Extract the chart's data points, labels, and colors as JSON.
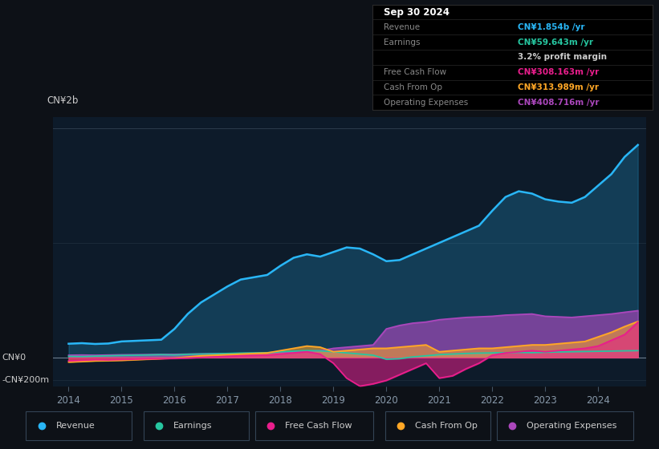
{
  "bg_color": "#0d1117",
  "chart_bg": "#0d1b2a",
  "ylim": [
    -250000000,
    2100000000
  ],
  "revenue_color": "#29b6f6",
  "earnings_color": "#26c6a0",
  "fcf_color": "#e91e8c",
  "cashfromop_color": "#ffa726",
  "opex_color": "#ab47bc",
  "legend_items": [
    {
      "label": "Revenue",
      "color": "#29b6f6"
    },
    {
      "label": "Earnings",
      "color": "#26c6a0"
    },
    {
      "label": "Free Cash Flow",
      "color": "#e91e8c"
    },
    {
      "label": "Cash From Op",
      "color": "#ffa726"
    },
    {
      "label": "Operating Expenses",
      "color": "#ab47bc"
    }
  ],
  "info_box": {
    "date": "Sep 30 2024",
    "revenue_label": "Revenue",
    "revenue": "CN¥1.854b",
    "revenue_color": "#29b6f6",
    "earnings_label": "Earnings",
    "earnings": "CN¥59.643m",
    "earnings_color": "#26c6a0",
    "profit_margin": "3.2%",
    "fcf_label": "Free Cash Flow",
    "fcf": "CN¥308.163m",
    "fcf_color": "#e91e8c",
    "cashfromop_label": "Cash From Op",
    "cashfromop": "CN¥313.989m",
    "cashfromop_color": "#ffa726",
    "opex_label": "Operating Expenses",
    "opex": "CN¥408.716m",
    "opex_color": "#ab47bc"
  },
  "ylabel_top": "CN¥2b",
  "ylabel_zero": "CN¥0",
  "ylabel_neg": "-CN¥200m",
  "x_years": [
    2014.0,
    2014.25,
    2014.5,
    2014.75,
    2015.0,
    2015.25,
    2015.5,
    2015.75,
    2016.0,
    2016.25,
    2016.5,
    2016.75,
    2017.0,
    2017.25,
    2017.5,
    2017.75,
    2018.0,
    2018.25,
    2018.5,
    2018.75,
    2019.0,
    2019.25,
    2019.5,
    2019.75,
    2020.0,
    2020.25,
    2020.5,
    2020.75,
    2021.0,
    2021.25,
    2021.5,
    2021.75,
    2022.0,
    2022.25,
    2022.5,
    2022.75,
    2023.0,
    2023.25,
    2023.5,
    2023.75,
    2024.0,
    2024.25,
    2024.5,
    2024.75
  ],
  "revenue": [
    120,
    125,
    118,
    122,
    140,
    145,
    150,
    155,
    250,
    380,
    480,
    550,
    620,
    680,
    700,
    720,
    800,
    870,
    900,
    880,
    920,
    960,
    950,
    900,
    840,
    850,
    900,
    950,
    1000,
    1050,
    1100,
    1150,
    1280,
    1400,
    1450,
    1430,
    1380,
    1360,
    1350,
    1400,
    1500,
    1600,
    1750,
    1854
  ],
  "earnings": [
    10,
    8,
    12,
    15,
    18,
    20,
    22,
    25,
    22,
    28,
    30,
    32,
    35,
    38,
    40,
    42,
    50,
    55,
    60,
    58,
    50,
    40,
    30,
    20,
    -15,
    -10,
    5,
    15,
    25,
    30,
    35,
    38,
    40,
    42,
    44,
    42,
    45,
    48,
    50,
    52,
    54,
    56,
    58,
    59.643
  ],
  "fcf": [
    -30,
    -25,
    -20,
    -22,
    -18,
    -15,
    -12,
    -10,
    -8,
    -5,
    0,
    5,
    10,
    15,
    18,
    20,
    30,
    40,
    50,
    30,
    -50,
    -180,
    -250,
    -230,
    -200,
    -150,
    -100,
    -50,
    -180,
    -160,
    -100,
    -50,
    20,
    40,
    50,
    60,
    50,
    60,
    70,
    80,
    100,
    150,
    200,
    308.163
  ],
  "cashfromop": [
    -40,
    -35,
    -30,
    -28,
    -25,
    -20,
    -15,
    -10,
    -5,
    5,
    15,
    20,
    25,
    30,
    35,
    40,
    60,
    80,
    100,
    90,
    50,
    60,
    70,
    80,
    80,
    90,
    100,
    110,
    50,
    60,
    70,
    80,
    80,
    90,
    100,
    110,
    110,
    120,
    130,
    140,
    180,
    220,
    270,
    313.989
  ],
  "opex": [
    20,
    22,
    20,
    22,
    24,
    25,
    26,
    28,
    28,
    30,
    32,
    34,
    35,
    36,
    38,
    40,
    45,
    50,
    55,
    60,
    80,
    90,
    100,
    110,
    250,
    280,
    300,
    310,
    330,
    340,
    350,
    355,
    360,
    370,
    375,
    380,
    360,
    355,
    350,
    360,
    370,
    380,
    395,
    408.716
  ]
}
